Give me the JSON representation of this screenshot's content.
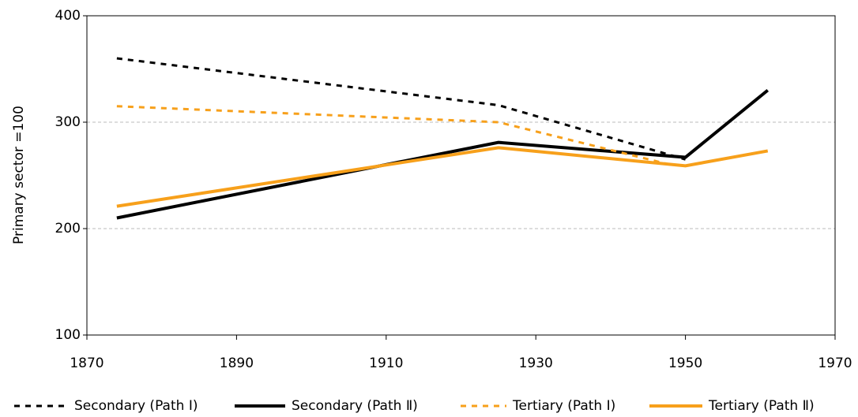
{
  "chart_data": {
    "type": "line",
    "y_label": "Primary sector =100",
    "xlim": [
      1870,
      1970
    ],
    "xticks": [
      1870,
      1890,
      1910,
      1930,
      1950,
      1970
    ],
    "ylim": [
      100,
      400
    ],
    "yticks": [
      100,
      200,
      300,
      400
    ],
    "grid": true,
    "legend": "bottom",
    "series": [
      {
        "name": "Secondary (Path Ⅰ)",
        "color": "#000000",
        "dashed": true,
        "x": [
          1874,
          1925,
          1950
        ],
        "values": [
          360,
          316,
          265
        ]
      },
      {
        "name": "Secondary (Path Ⅱ)",
        "color": "#000000",
        "dashed": false,
        "x": [
          1874,
          1925,
          1950,
          1961
        ],
        "values": [
          210,
          281,
          267,
          330
        ]
      },
      {
        "name": "Tertiary (Path Ⅰ)",
        "color": "#f7a01b",
        "dashed": true,
        "x": [
          1874,
          1925,
          1948
        ],
        "values": [
          315,
          300,
          260
        ]
      },
      {
        "name": "Tertiary (Path Ⅱ)",
        "color": "#f7a01b",
        "dashed": false,
        "x": [
          1874,
          1925,
          1950,
          1961
        ],
        "values": [
          221,
          276,
          259,
          273
        ]
      }
    ]
  }
}
